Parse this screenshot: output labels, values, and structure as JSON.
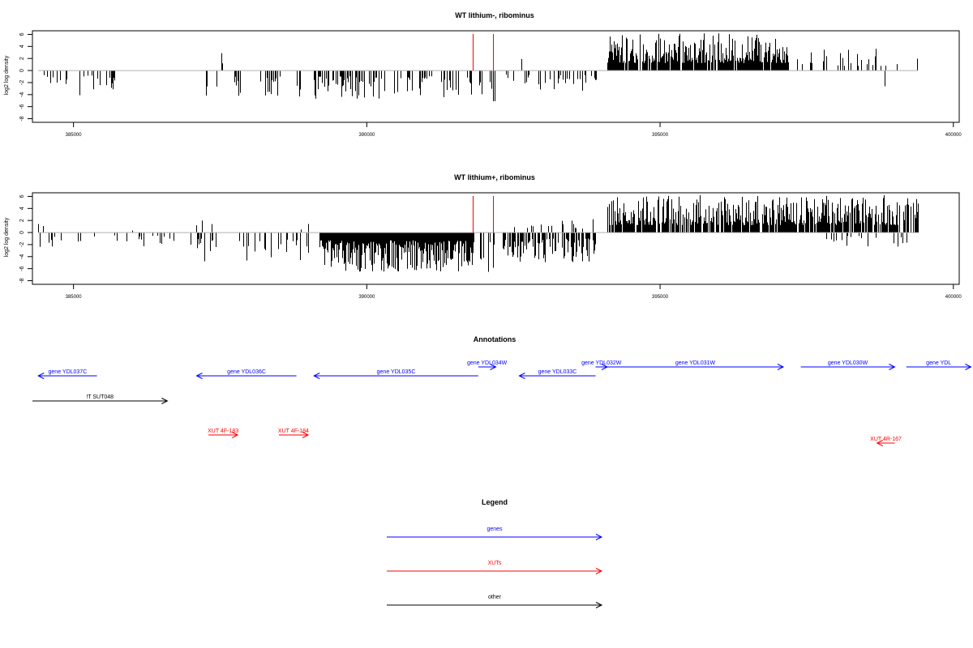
{
  "chart_data": [
    {
      "type": "bar",
      "title": "WT lithium-, ribominus",
      "ylabel": "log2 log density",
      "xlabel": "",
      "xlim": [
        384300,
        400100
      ],
      "ylim": [
        -8.6,
        6.6
      ],
      "xticks": [
        385000,
        390000,
        395000,
        400000
      ],
      "xtick_labels": [
        "385000",
        "390000",
        "395000",
        "400000"
      ],
      "yticks": [
        6,
        4,
        2,
        0,
        -2,
        -4,
        -6,
        -8
      ],
      "ytick_labels": [
        "6",
        "4",
        "2",
        "0",
        "-2",
        "-4",
        "-6",
        "-8"
      ],
      "baseline": {
        "x": [
          384400,
          399400
        ],
        "y": 0
      },
      "markers": {
        "x": [
          391800,
          392150
        ],
        "color": "#ff0000"
      },
      "segments": [
        {
          "x": [
            384400,
            384900
          ],
          "sign": -1,
          "max": 2.6,
          "density": 0.05
        },
        {
          "x": [
            385100,
            385800
          ],
          "sign": -1,
          "max": 4.2,
          "density": 0.06
        },
        {
          "x": [
            387300,
            387550
          ],
          "sign": 1,
          "max": 3.5,
          "density": 0.04
        },
        {
          "x": [
            387250,
            388900
          ],
          "sign": -1,
          "max": 4.5,
          "density": 0.05
        },
        {
          "x": [
            389100,
            390300
          ],
          "sign": -1,
          "max": 4.8,
          "density": 0.11
        },
        {
          "x": [
            390300,
            391800
          ],
          "sign": -1,
          "max": 4.5,
          "density": 0.07
        },
        {
          "x": [
            391800,
            392200
          ],
          "sign": -1,
          "max": 5.6,
          "density": 0.05
        },
        {
          "x": [
            392300,
            392700
          ],
          "sign": 1,
          "max": 2.4,
          "density": 0.01
        },
        {
          "x": [
            392350,
            394000
          ],
          "sign": -1,
          "max": 3.4,
          "density": 0.05
        },
        {
          "x": [
            394100,
            397200
          ],
          "sign": 1,
          "max": 6.2,
          "density": 0.22
        },
        {
          "x": [
            397300,
            399400
          ],
          "sign": 1,
          "max": 3.8,
          "density": 0.035
        },
        {
          "x": [
            398800,
            399000
          ],
          "sign": -1,
          "max": 2.7,
          "density": 0.01
        }
      ]
    },
    {
      "type": "bar",
      "title": "WT lithium+, ribominus",
      "ylabel": "log2 log density",
      "xlabel": "",
      "xlim": [
        384300,
        400100
      ],
      "ylim": [
        -8.6,
        6.6
      ],
      "xticks": [
        385000,
        390000,
        395000,
        400000
      ],
      "xtick_labels": [
        "385000",
        "390000",
        "395000",
        "400000"
      ],
      "yticks": [
        6,
        4,
        2,
        0,
        -2,
        -4,
        -6,
        -8
      ],
      "ytick_labels": [
        "6",
        "4",
        "2",
        "0",
        "-2",
        "-4",
        "-6",
        "-8"
      ],
      "baseline": {
        "x": [
          384400,
          399400
        ],
        "y": 0
      },
      "markers": {
        "x": [
          391800,
          392150
        ],
        "color": "#ff0000"
      },
      "segments": [
        {
          "x": [
            384400,
            384500
          ],
          "sign": 1,
          "max": 2.2,
          "density": 0.02
        },
        {
          "x": [
            384400,
            386800
          ],
          "sign": -1,
          "max": 2.4,
          "density": 0.03
        },
        {
          "x": [
            386000,
            386100
          ],
          "sign": 1,
          "max": 1.4,
          "density": 0.01
        },
        {
          "x": [
            387000,
            387400
          ],
          "sign": 1,
          "max": 2.8,
          "density": 0.03
        },
        {
          "x": [
            387000,
            389100
          ],
          "sign": -1,
          "max": 4.8,
          "density": 0.05
        },
        {
          "x": [
            388400,
            389200
          ],
          "sign": 1,
          "max": 2.2,
          "density": 0.02
        },
        {
          "x": [
            389200,
            391800
          ],
          "sign": -1,
          "max": 6.5,
          "density": 0.26
        },
        {
          "x": [
            389800,
            389900
          ],
          "sign": 1,
          "max": 3.2,
          "density": 0.01
        },
        {
          "x": [
            391800,
            392200
          ],
          "sign": -1,
          "max": 8.0,
          "density": 0.05
        },
        {
          "x": [
            392400,
            393900
          ],
          "sign": 1,
          "max": 2.6,
          "density": 0.05
        },
        {
          "x": [
            392300,
            393900
          ],
          "sign": -1,
          "max": 5.0,
          "density": 0.14
        },
        {
          "x": [
            394100,
            399400
          ],
          "sign": 1,
          "max": 6.2,
          "density": 0.2
        },
        {
          "x": [
            397800,
            399200
          ],
          "sign": -1,
          "max": 2.8,
          "density": 0.04
        }
      ]
    }
  ],
  "annotations": {
    "title": "Annotations",
    "xlim": [
      384300,
      400100
    ],
    "items": [
      {
        "label": "gene YDL037C",
        "start": 384400,
        "end": 385400,
        "dir": "left",
        "color": "#0000ff",
        "track": 1
      },
      {
        "label": "gene YDL036C",
        "start": 387100,
        "end": 388800,
        "dir": "left",
        "color": "#0000ff",
        "track": 1
      },
      {
        "label": "gene YDL035C",
        "start": 389100,
        "end": 391900,
        "dir": "left",
        "color": "#0000ff",
        "track": 1
      },
      {
        "label": "gene YDL034W",
        "start": 391900,
        "end": 392200,
        "dir": "right",
        "color": "#0000ff",
        "track": 0
      },
      {
        "label": "gene YDL033C",
        "start": 392600,
        "end": 393900,
        "dir": "left",
        "color": "#0000ff",
        "track": 1
      },
      {
        "label": "gene YDL032W",
        "start": 393900,
        "end": 394100,
        "dir": "right",
        "color": "#0000ff",
        "track": 0
      },
      {
        "label": "gene YDL031W",
        "start": 394100,
        "end": 397100,
        "dir": "right",
        "color": "#0000ff",
        "track": 0
      },
      {
        "label": "gene YDL030W",
        "start": 397400,
        "end": 399000,
        "dir": "right",
        "color": "#0000ff",
        "track": 0
      },
      {
        "label": "gene YDL",
        "start": 399200,
        "end": 400300,
        "dir": "right",
        "color": "#0000ff",
        "track": 0
      },
      {
        "label": "!T SUT048",
        "start": 384300,
        "end": 386600,
        "dir": "right",
        "color": "#000000",
        "track": 2
      },
      {
        "label": "XUT 4F-183",
        "start": 387300,
        "end": 387800,
        "dir": "right",
        "color": "#ff0000",
        "track": 3
      },
      {
        "label": "XUT 4F-184",
        "start": 388500,
        "end": 389000,
        "dir": "right",
        "color": "#ff0000",
        "track": 3
      },
      {
        "label": "XUT 4R-167",
        "start": 398700,
        "end": 399000,
        "dir": "left",
        "color": "#ff0000",
        "track": 4
      }
    ]
  },
  "legend": {
    "title": "Legend",
    "items": [
      {
        "label": "genes",
        "color": "#0000ff"
      },
      {
        "label": "XUTs",
        "color": "#ff0000"
      },
      {
        "label": "other",
        "color": "#000000"
      }
    ]
  }
}
